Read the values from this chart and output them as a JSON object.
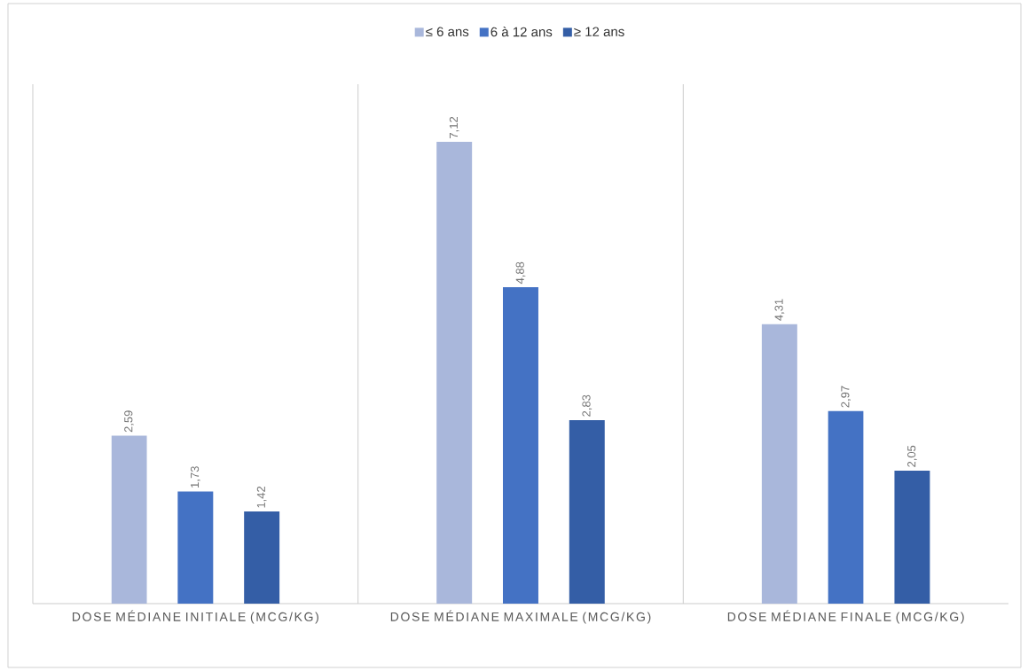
{
  "chart_data": {
    "type": "bar",
    "categories": [
      "DOSE MÉDIANE INITIALE (MCG/KG)",
      "DOSE MÉDIANE MAXIMALE (MCG/KG)",
      "DOSE MÉDIANE FINALE (MCG/KG)"
    ],
    "series": [
      {
        "name": "≤ 6 ans",
        "color": "#a9b7db",
        "values": [
          2.59,
          7.12,
          4.31
        ],
        "value_labels": [
          "2,59",
          "7,12",
          "4,31"
        ]
      },
      {
        "name": "6 à 12 ans",
        "color": "#4472c4",
        "values": [
          1.73,
          4.88,
          2.97
        ],
        "value_labels": [
          "1,73",
          "4,88",
          "2,97"
        ]
      },
      {
        "name": "≥ 12 ans",
        "color": "#345ea6",
        "values": [
          1.42,
          2.83,
          2.05
        ],
        "value_labels": [
          "1,42",
          "2,83",
          "2,05"
        ]
      }
    ],
    "grid": "x",
    "legend": "top"
  }
}
